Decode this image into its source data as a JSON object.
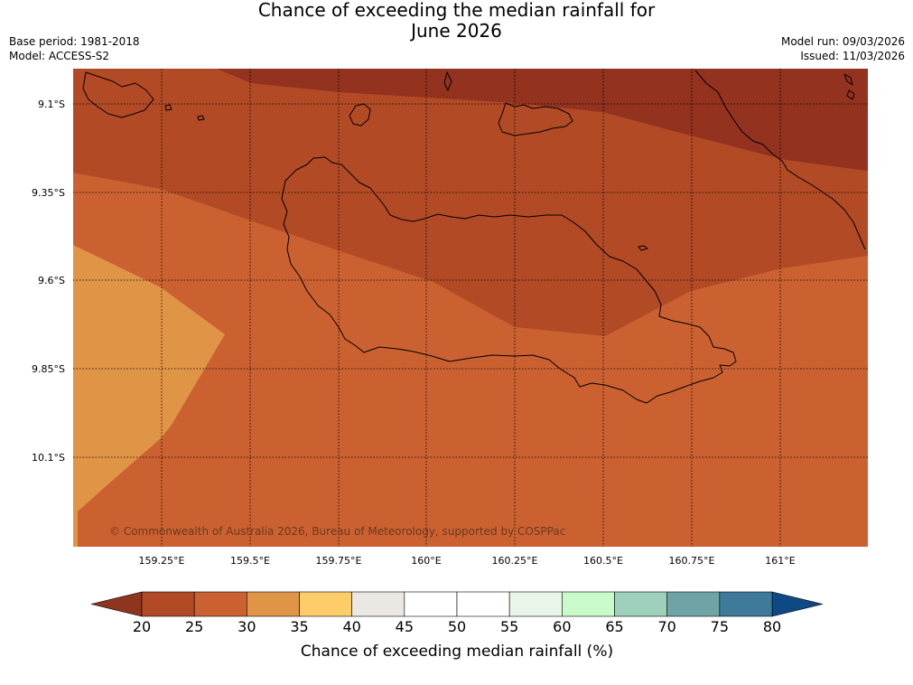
{
  "title": {
    "line1": "Chance of exceeding the median rainfall for",
    "line2": "June 2026"
  },
  "meta_left": {
    "base_period": "Base period: 1981-2018",
    "model": "Model: ACCESS-S2"
  },
  "meta_right": {
    "model_run": "Model run: 09/03/2026",
    "issued": "Issued: 11/03/2026"
  },
  "map": {
    "latitude_labels": [
      "9.1°S",
      "9.35°S",
      "9.6°S",
      "9.85°S",
      "10.1°S"
    ],
    "longitude_labels": [
      "159.25°E",
      "159.5°E",
      "159.75°E",
      "160°E",
      "160.25°E",
      "160.5°E",
      "160.75°E",
      "161°E"
    ],
    "copyright": "© Commonwealth of Australia 2026, Bureau of Meteorology, supported by COSPPac"
  },
  "colorbar": {
    "title": "Chance of exceeding median rainfall (%)",
    "tick_labels": [
      "20",
      "25",
      "30",
      "35",
      "40",
      "45",
      "50",
      "55",
      "60",
      "65",
      "70",
      "75",
      "80"
    ],
    "colors": [
      "#b24a26",
      "#cb6131",
      "#e09446",
      "#fdcd6a",
      "#ebe8e3",
      "#ffffff",
      "#ffffff",
      "#e9f5e9",
      "#c9fac9",
      "#9dd1bb",
      "#6fa3a6",
      "#3f7a9a"
    ],
    "under_color": "#8e3520",
    "over_color": "#0d4a84"
  },
  "palette": {
    "zone_20_25_dark": "#92321f",
    "zone_25_30": "#b24a26",
    "zone_30_35": "#cb6131",
    "zone_35_40": "#e09446"
  }
}
